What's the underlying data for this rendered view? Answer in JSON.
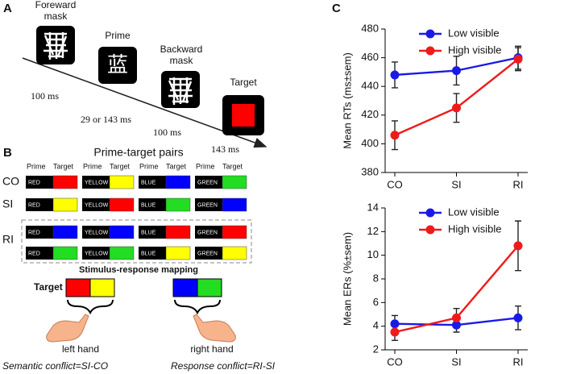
{
  "panel_labels": [
    "A",
    "B",
    "C"
  ],
  "timeline": {
    "stages": [
      {
        "label_lines": [
          "Foreward",
          "mask"
        ]
      },
      {
        "label_lines": [
          "Prime"
        ],
        "glyph": "蓝"
      },
      {
        "label_lines": [
          "Backward",
          "mask"
        ]
      },
      {
        "label_lines": [
          "Target"
        ],
        "color": "#ff0000"
      }
    ],
    "durations": [
      "100 ms",
      "29 or 143 ms",
      "100 ms",
      "143 ms"
    ]
  },
  "pairs": {
    "title": "Prime-target pairs",
    "column_headers": [
      [
        "Prime",
        "Target"
      ],
      [
        "Prime",
        "Target"
      ],
      [
        "Prime",
        "Target"
      ],
      [
        "Prime",
        "Target"
      ]
    ],
    "rows": [
      {
        "label": "CO",
        "lines": [
          [
            [
              "RED",
              "#ff0000"
            ],
            [
              "YELLOW",
              "#ffff00"
            ],
            [
              "BLUE",
              "#0000ff"
            ],
            [
              "GREEN",
              "#22dd22"
            ]
          ]
        ]
      },
      {
        "label": "SI",
        "lines": [
          [
            [
              "RED",
              "#ffff00"
            ],
            [
              "YELLOW",
              "#ff0000"
            ],
            [
              "BLUE",
              "#22dd22"
            ],
            [
              "GREEN",
              "#0000ff"
            ]
          ]
        ]
      },
      {
        "label": "RI",
        "lines": [
          [
            [
              "RED",
              "#0000ff"
            ],
            [
              "YELLOW",
              "#0000ff"
            ],
            [
              "BLUE",
              "#ff0000"
            ],
            [
              "GREEN",
              "#ff0000"
            ]
          ],
          [
            [
              "RED",
              "#22dd22"
            ],
            [
              "YELLOW",
              "#22dd22"
            ],
            [
              "BLUE",
              "#ffff00"
            ],
            [
              "GREEN",
              "#ffff00"
            ]
          ]
        ]
      }
    ]
  },
  "mapping": {
    "title": "Stimulus-response mapping",
    "target_label": "Target",
    "left": {
      "colors": [
        "#ff0000",
        "#ffff00"
      ],
      "label": "left hand"
    },
    "right": {
      "colors": [
        "#0000ff",
        "#22dd22"
      ],
      "label": "right hand"
    }
  },
  "formulas": [
    "Semantic conflict=SI-CO",
    "Response conflict=RI-SI"
  ],
  "chart_data": [
    {
      "type": "line",
      "ylabel": "Mean RTs (ms±sem)",
      "categories": [
        "CO",
        "SI",
        "RI"
      ],
      "ylim": [
        380,
        480
      ],
      "yticks": [
        380,
        400,
        420,
        440,
        460,
        480
      ],
      "legend": "upper left",
      "series": [
        {
          "name": "Low visible",
          "color": "#1a1ae6",
          "values": [
            448,
            451,
            460
          ],
          "errors": [
            9,
            10,
            8
          ]
        },
        {
          "name": "High visible",
          "color": "#f01a1a",
          "values": [
            406,
            425,
            459
          ],
          "errors": [
            10,
            10,
            8
          ]
        }
      ]
    },
    {
      "type": "line",
      "ylabel": "Mean ERs (%±sem)",
      "categories": [
        "CO",
        "SI",
        "RI"
      ],
      "ylim": [
        2,
        14
      ],
      "yticks": [
        2,
        4,
        6,
        8,
        10,
        12,
        14
      ],
      "legend": "upper left",
      "series": [
        {
          "name": "Low visible",
          "color": "#1a1ae6",
          "values": [
            4.2,
            4.1,
            4.7
          ],
          "errors": [
            0.7,
            0.6,
            1.0
          ]
        },
        {
          "name": "High visible",
          "color": "#f01a1a",
          "values": [
            3.5,
            4.7,
            10.8
          ],
          "errors": [
            0.7,
            0.8,
            2.1
          ]
        }
      ]
    }
  ]
}
